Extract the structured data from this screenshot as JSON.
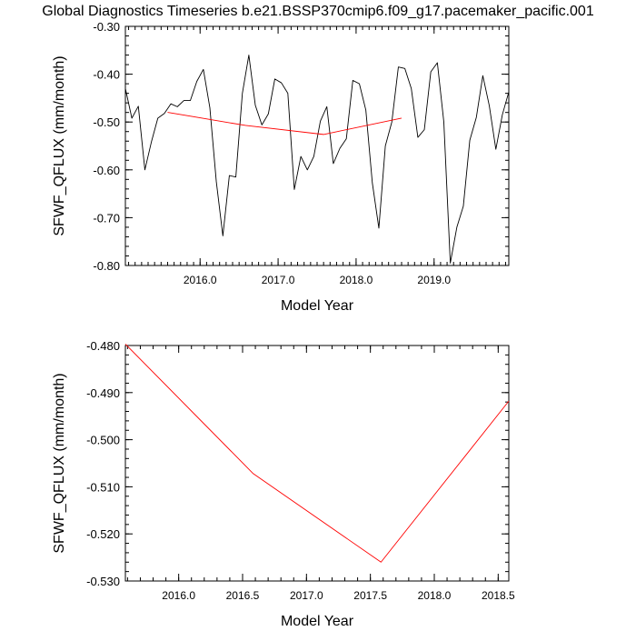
{
  "title": "Global Diagnostics Timeseries b.e21.BSSP370cmip6.f09_g17.pacemaker_pacific.001",
  "colors": {
    "monthly": "#000000",
    "annual": "#ff0000",
    "axis": "#000000",
    "background": "#ffffff"
  },
  "chart_data": [
    {
      "type": "line",
      "xlabel": "Model Year",
      "ylabel": "SFWF_QFLUX (mm/month)",
      "xlim": [
        2015.042,
        2019.958
      ],
      "ylim": [
        -0.8,
        -0.3
      ],
      "xticks": [
        2016.0,
        2017.0,
        2018.0,
        2019.0
      ],
      "xtick_labels": [
        "2016.0",
        "2017.0",
        "2018.0",
        "2019.0"
      ],
      "yticks": [
        -0.3,
        -0.4,
        -0.5,
        -0.6,
        -0.7,
        -0.8
      ],
      "ytick_labels": [
        "-0.30",
        "-0.40",
        "-0.50",
        "-0.60",
        "-0.70",
        "-0.80"
      ],
      "grid": false,
      "series": [
        {
          "color": "#000000",
          "x": [
            2015.042,
            2015.125,
            2015.208,
            2015.292,
            2015.375,
            2015.458,
            2015.542,
            2015.625,
            2015.708,
            2015.792,
            2015.875,
            2015.958,
            2016.042,
            2016.125,
            2016.208,
            2016.292,
            2016.375,
            2016.458,
            2016.542,
            2016.625,
            2016.708,
            2016.792,
            2016.875,
            2016.958,
            2017.042,
            2017.125,
            2017.208,
            2017.292,
            2017.375,
            2017.458,
            2017.542,
            2017.625,
            2017.708,
            2017.792,
            2017.875,
            2017.958,
            2018.042,
            2018.125,
            2018.208,
            2018.292,
            2018.375,
            2018.458,
            2018.542,
            2018.625,
            2018.708,
            2018.792,
            2018.875,
            2018.958,
            2019.042,
            2019.125,
            2019.208,
            2019.292,
            2019.375,
            2019.458,
            2019.542,
            2019.625,
            2019.708,
            2019.792,
            2019.875,
            2019.958
          ],
          "y": [
            -0.43,
            -0.492,
            -0.467,
            -0.6,
            -0.542,
            -0.492,
            -0.482,
            -0.462,
            -0.468,
            -0.455,
            -0.455,
            -0.415,
            -0.39,
            -0.47,
            -0.625,
            -0.738,
            -0.612,
            -0.615,
            -0.44,
            -0.36,
            -0.465,
            -0.506,
            -0.483,
            -0.41,
            -0.418,
            -0.44,
            -0.641,
            -0.572,
            -0.6,
            -0.572,
            -0.498,
            -0.468,
            -0.587,
            -0.555,
            -0.535,
            -0.413,
            -0.42,
            -0.475,
            -0.627,
            -0.722,
            -0.55,
            -0.5,
            -0.385,
            -0.388,
            -0.43,
            -0.532,
            -0.516,
            -0.395,
            -0.376,
            -0.5,
            -0.795,
            -0.72,
            -0.676,
            -0.538,
            -0.49,
            -0.403,
            -0.466,
            -0.557,
            -0.485,
            -0.437
          ]
        },
        {
          "color": "#ff0000",
          "x": [
            2015.583,
            2016.583,
            2017.583,
            2018.583
          ],
          "y": [
            -0.4797,
            -0.5072,
            -0.526,
            -0.4918
          ]
        }
      ]
    },
    {
      "type": "line",
      "xlabel": "Model Year",
      "ylabel": "SFWF_QFLUX (mm/month)",
      "xlim": [
        2015.583,
        2018.583
      ],
      "ylim": [
        -0.53,
        -0.48
      ],
      "xticks": [
        2016.0,
        2016.5,
        2017.0,
        2017.5,
        2018.0,
        2018.5
      ],
      "xtick_labels": [
        "2016.0",
        "2016.5",
        "2017.0",
        "2017.5",
        "2018.0",
        "2018.5"
      ],
      "yticks": [
        -0.48,
        -0.49,
        -0.5,
        -0.51,
        -0.52,
        -0.53
      ],
      "ytick_labels": [
        "-0.480",
        "-0.490",
        "-0.500",
        "-0.510",
        "-0.520",
        "-0.530"
      ],
      "grid": false,
      "series": [
        {
          "color": "#ff0000",
          "x": [
            2015.583,
            2016.583,
            2017.583,
            2018.583
          ],
          "y": [
            -0.4797,
            -0.5072,
            -0.526,
            -0.4918
          ]
        }
      ]
    }
  ]
}
